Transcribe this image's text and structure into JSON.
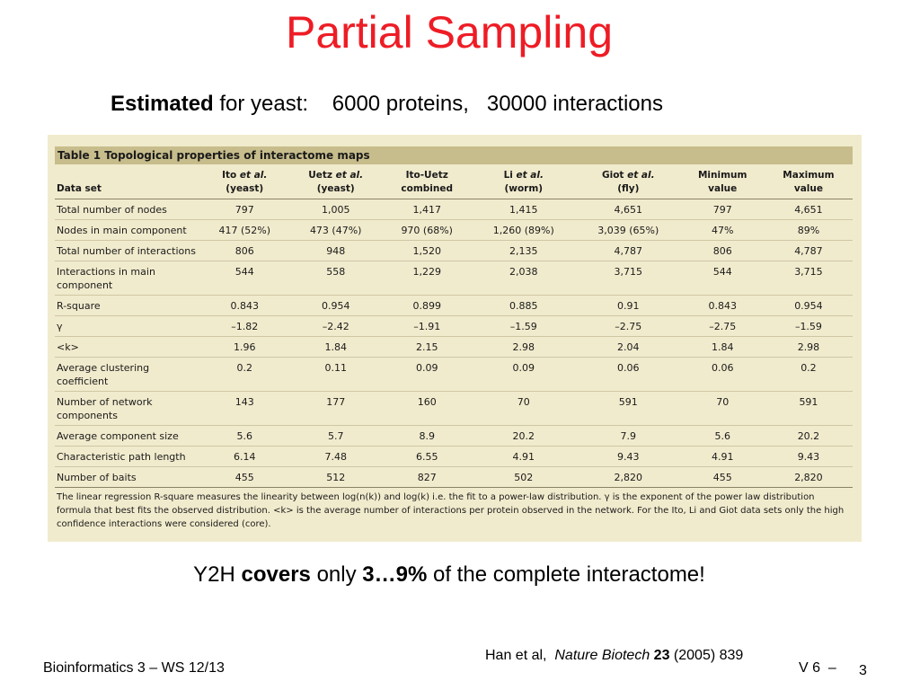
{
  "slide": {
    "title": "Partial Sampling",
    "subtitle": {
      "bold": "Estimated",
      "rest": " for yeast:    6000 proteins,   30000 interactions"
    },
    "summary": {
      "prefix": "Y2H ",
      "bold1": "covers",
      "middle": " only ",
      "bold2": "3…9%",
      "suffix": " of the complete interactome!"
    },
    "citation": {
      "authors": "Han et al,  ",
      "journal": "Nature Biotech",
      "volume": "23",
      "rest": " (2005) 839"
    },
    "footer": {
      "course": "Bioinformatics 3 – WS 12/13",
      "lecture": "V 6  –",
      "page": "3"
    }
  },
  "table": {
    "caption": "Table 1  Topological properties of interactome maps",
    "headers": [
      {
        "line1": "",
        "line2": "Data set"
      },
      {
        "line1": "Ito et al.",
        "line2": "(yeast)"
      },
      {
        "line1": "Uetz et al.",
        "line2": "(yeast)"
      },
      {
        "line1": "Ito-Uetz",
        "line2": "combined"
      },
      {
        "line1": "Li et al.",
        "line2": "(worm)"
      },
      {
        "line1": "Giot et al.",
        "line2": "(fly)"
      },
      {
        "line1": "Minimum",
        "line2": "value"
      },
      {
        "line1": "Maximum",
        "line2": "value"
      }
    ],
    "rows": [
      [
        "Total number of nodes",
        "797",
        "1,005",
        "1,417",
        "1,415",
        "4,651",
        "797",
        "4,651"
      ],
      [
        "Nodes in main component",
        "417 (52%)",
        "473 (47%)",
        "970 (68%)",
        "1,260 (89%)",
        "3,039 (65%)",
        "47%",
        "89%"
      ],
      [
        "Total number of interactions",
        "806",
        "948",
        "1,520",
        "2,135",
        "4,787",
        "806",
        "4,787"
      ],
      [
        "Interactions in main component",
        "544",
        "558",
        "1,229",
        "2,038",
        "3,715",
        "544",
        "3,715"
      ],
      [
        "R-square",
        "0.843",
        "0.954",
        "0.899",
        "0.885",
        "0.91",
        "0.843",
        "0.954"
      ],
      [
        "γ",
        "–1.82",
        "–2.42",
        "–1.91",
        "–1.59",
        "–2.75",
        "–2.75",
        "–1.59"
      ],
      [
        "<k>",
        "1.96",
        "1.84",
        "2.15",
        "2.98",
        "2.04",
        "1.84",
        "2.98"
      ],
      [
        "Average clustering coefficient",
        "0.2",
        "0.11",
        "0.09",
        "0.09",
        "0.06",
        "0.06",
        "0.2"
      ],
      [
        "Number of network components",
        "143",
        "177",
        "160",
        "70",
        "591",
        "70",
        "591"
      ],
      [
        "Average component size",
        "5.6",
        "5.7",
        "8.9",
        "20.2",
        "7.9",
        "5.6",
        "20.2"
      ],
      [
        "Characteristic path length",
        "6.14",
        "7.48",
        "6.55",
        "4.91",
        "9.43",
        "4.91",
        "9.43"
      ],
      [
        "Number of baits",
        "455",
        "512",
        "827",
        "502",
        "2,820",
        "455",
        "2,820"
      ]
    ],
    "footnote": "The linear regression R-square measures the linearity between log(n(k)) and log(k) i.e. the fit to a power-law distribution. γ is the exponent of the power law distribution formula that best fits the observed distribution. <k> is the average number of interactions per protein observed in the network. For the Ito, Li and Giot data sets only the high confidence interactions were considered (core)."
  },
  "colors": {
    "title": "#ee1c25",
    "table_background": "#f1ebcd",
    "caption_background": "#c7bd8c"
  }
}
